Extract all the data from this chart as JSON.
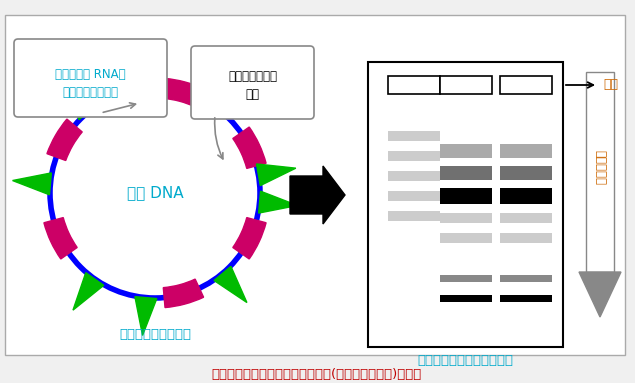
{
  "title": "図１　遺伝子を用いたタイピング(リボタイピング)の原理",
  "title_color": "#c00000",
  "bg_color": "#f0f0f0",
  "circle_color": "#0000ff",
  "pink_segment_color": "#cc0066",
  "green_segment_color": "#00bb00",
  "label_ribosome": "リボソーム RNAを\nコードする遺伝子",
  "label_restriction": "制限酵素による\n切断",
  "label_bacteria": "細菌 DNA",
  "label_below_circle": "制限酵素による切断",
  "label_below_gel": "電気泳動による断片の分離",
  "label_genten": "原点",
  "label_direction": "泳動の方向",
  "text_color_cyan": "#00aacc",
  "text_color_orange": "#cc6600"
}
